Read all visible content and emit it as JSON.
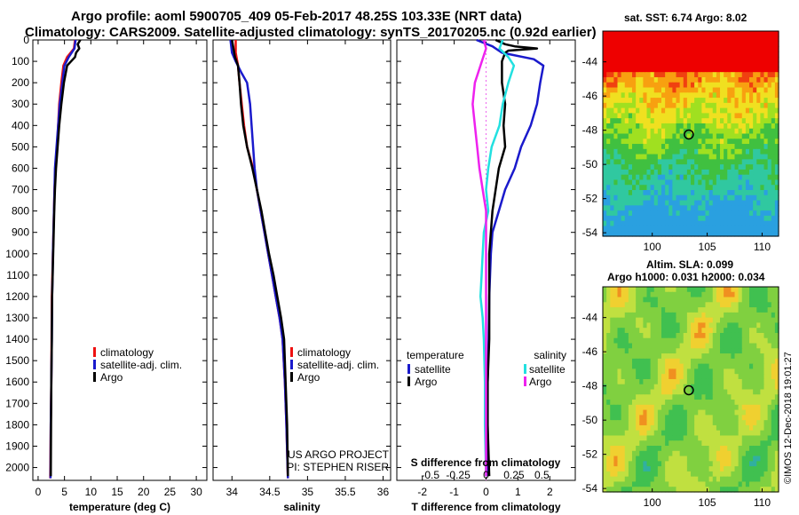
{
  "header": {
    "line1": "Argo profile: aoml 5900705_409 05-Feb-2017 48.25S 103.33E (NRT data)",
    "line2": "Climatology: CARS2009. Satellite-adjusted climatology: synTS_20170205.nc (0.92d earlier)"
  },
  "colors": {
    "climatology": "#ee1111",
    "satellite": "#1a1acc",
    "argo": "#000000",
    "sal_satellite": "#22e0e0",
    "sal_argo": "#ee22ee"
  },
  "depth_axis": {
    "ticks": [
      0,
      100,
      200,
      300,
      400,
      500,
      600,
      700,
      800,
      900,
      1000,
      1100,
      1200,
      1300,
      1400,
      1500,
      1600,
      1700,
      1800,
      1900,
      2000
    ]
  },
  "chart_data": [
    {
      "type": "line",
      "id": "temperature",
      "xlabel": "temperature (deg C)",
      "ylabel": "depth",
      "xlim": [
        -1,
        32
      ],
      "ylim": [
        2060,
        0
      ],
      "xticks": [
        0,
        5,
        10,
        15,
        20,
        25,
        30
      ],
      "xtick_labels": [
        "0",
        "5",
        "10",
        "15",
        "20",
        "25",
        "30"
      ],
      "legend": [
        "climatology",
        "satellite-adj. clim.",
        "Argo"
      ],
      "series": [
        {
          "name": "climatology",
          "color": "#ee1111",
          "points": [
            [
              7,
              0
            ],
            [
              6.8,
              40
            ],
            [
              5.5,
              80
            ],
            [
              4.8,
              120
            ],
            [
              4.4,
              200
            ],
            [
              4,
              300
            ],
            [
              3.8,
              400
            ],
            [
              3.6,
              500
            ],
            [
              3.3,
              600
            ],
            [
              3.1,
              700
            ],
            [
              3,
              800
            ],
            [
              2.9,
              900
            ],
            [
              2.8,
              1000
            ],
            [
              2.7,
              1100
            ],
            [
              2.6,
              1200
            ],
            [
              2.55,
              1400
            ],
            [
              2.5,
              1600
            ],
            [
              2.4,
              1800
            ],
            [
              2.3,
              2050
            ]
          ]
        },
        {
          "name": "satellite-adj. clim.",
          "color": "#1a1acc",
          "points": [
            [
              7.1,
              0
            ],
            [
              6.9,
              40
            ],
            [
              5.8,
              80
            ],
            [
              5,
              120
            ],
            [
              4.6,
              200
            ],
            [
              4.1,
              300
            ],
            [
              3.8,
              400
            ],
            [
              3.5,
              500
            ],
            [
              3.2,
              600
            ],
            [
              3.1,
              700
            ],
            [
              3,
              800
            ],
            [
              2.9,
              900
            ],
            [
              2.8,
              1000
            ],
            [
              2.75,
              1100
            ],
            [
              2.65,
              1200
            ],
            [
              2.6,
              1400
            ],
            [
              2.5,
              1600
            ],
            [
              2.4,
              1800
            ],
            [
              2.35,
              2050
            ]
          ]
        },
        {
          "name": "Argo",
          "color": "#000000",
          "points": [
            [
              8,
              0
            ],
            [
              7.5,
              20
            ],
            [
              7.8,
              40
            ],
            [
              7.2,
              60
            ],
            [
              7,
              80
            ],
            [
              5.5,
              120
            ],
            [
              4.9,
              200
            ],
            [
              4.4,
              300
            ],
            [
              4,
              400
            ],
            [
              3.7,
              500
            ],
            [
              3.4,
              600
            ],
            [
              3.2,
              700
            ],
            [
              3.05,
              800
            ],
            [
              2.95,
              900
            ],
            [
              2.85,
              1000
            ],
            [
              2.75,
              1100
            ],
            [
              2.65,
              1200
            ],
            [
              2.6,
              1400
            ],
            [
              2.5,
              1600
            ],
            [
              2.45,
              1800
            ],
            [
              2.4,
              2040
            ]
          ]
        }
      ]
    },
    {
      "type": "line",
      "id": "salinity",
      "xlabel": "salinity",
      "ylabel": "depth",
      "xlim": [
        33.75,
        36.1
      ],
      "ylim": [
        2060,
        0
      ],
      "xticks": [
        34,
        34.5,
        35,
        35.5,
        36
      ],
      "xtick_labels": [
        "34",
        "34.5",
        "35",
        "35.5",
        "36"
      ],
      "legend": [
        "climatology",
        "satellite-adj. clim.",
        "Argo"
      ],
      "annotations": [
        "US ARGO PROJECT",
        "PI: STEPHEN RISER"
      ],
      "series": [
        {
          "name": "climatology",
          "color": "#ee1111",
          "points": [
            [
              34.05,
              0
            ],
            [
              34.05,
              60
            ],
            [
              34.08,
              120
            ],
            [
              34.1,
              200
            ],
            [
              34.13,
              300
            ],
            [
              34.16,
              400
            ],
            [
              34.2,
              500
            ],
            [
              34.28,
              600
            ],
            [
              34.33,
              700
            ],
            [
              34.38,
              800
            ],
            [
              34.43,
              900
            ],
            [
              34.48,
              1000
            ],
            [
              34.53,
              1100
            ],
            [
              34.58,
              1200
            ],
            [
              34.63,
              1300
            ],
            [
              34.67,
              1400
            ],
            [
              34.7,
              1600
            ],
            [
              34.72,
              1800
            ],
            [
              34.74,
              2050
            ]
          ]
        },
        {
          "name": "satellite-adj. clim.",
          "color": "#1a1acc",
          "points": [
            [
              33.98,
              0
            ],
            [
              34,
              60
            ],
            [
              34.05,
              100
            ],
            [
              34.12,
              150
            ],
            [
              34.2,
              200
            ],
            [
              34.24,
              300
            ],
            [
              34.26,
              400
            ],
            [
              34.28,
              500
            ],
            [
              34.3,
              600
            ],
            [
              34.33,
              700
            ],
            [
              34.38,
              800
            ],
            [
              34.43,
              900
            ],
            [
              34.48,
              1000
            ],
            [
              34.53,
              1100
            ],
            [
              34.58,
              1200
            ],
            [
              34.63,
              1300
            ],
            [
              34.67,
              1400
            ],
            [
              34.7,
              1600
            ],
            [
              34.72,
              1800
            ],
            [
              34.74,
              2050
            ]
          ]
        },
        {
          "name": "Argo",
          "color": "#000000",
          "points": [
            [
              34,
              0
            ],
            [
              34.02,
              40
            ],
            [
              34.04,
              80
            ],
            [
              34.08,
              120
            ],
            [
              34.1,
              200
            ],
            [
              34.12,
              300
            ],
            [
              34.15,
              400
            ],
            [
              34.2,
              500
            ],
            [
              34.27,
              600
            ],
            [
              34.33,
              700
            ],
            [
              34.39,
              800
            ],
            [
              34.44,
              900
            ],
            [
              34.49,
              1000
            ],
            [
              34.55,
              1100
            ],
            [
              34.6,
              1200
            ],
            [
              34.65,
              1300
            ],
            [
              34.69,
              1400
            ],
            [
              34.71,
              1600
            ],
            [
              34.73,
              1800
            ],
            [
              34.74,
              2040
            ]
          ]
        }
      ]
    },
    {
      "type": "line",
      "id": "difference",
      "xlabel": "T difference from climatology",
      "xlabel2": "S difference from climatology",
      "ylabel": "depth",
      "xlim": [
        -2.8,
        2.8
      ],
      "ylim": [
        2060,
        0
      ],
      "xticks": [
        -2,
        -1,
        0,
        1,
        2
      ],
      "xtick_labels": [
        "-2",
        "-1",
        "0",
        "1",
        "2"
      ],
      "xticks_s": [
        -0.5,
        -0.25,
        0,
        0.25,
        0.5
      ],
      "xtick_labels_s": [
        "-0.5",
        "-0.25",
        "0",
        "0.25",
        "0.5"
      ],
      "legend_left_title": "temperature",
      "legend_right_title": "salinity",
      "legend_left": [
        "satellite",
        "Argo"
      ],
      "legend_right": [
        "satellite",
        "Argo"
      ],
      "series": [
        {
          "name": "T satellite",
          "color": "#1a1acc",
          "points": [
            [
              -0.3,
              0
            ],
            [
              0.2,
              30
            ],
            [
              0.5,
              60
            ],
            [
              1.5,
              90
            ],
            [
              1.8,
              120
            ],
            [
              1.7,
              200
            ],
            [
              1.6,
              300
            ],
            [
              1.4,
              400
            ],
            [
              1.1,
              500
            ],
            [
              0.9,
              600
            ],
            [
              0.6,
              700
            ],
            [
              0.4,
              800
            ],
            [
              0.2,
              900
            ],
            [
              0.15,
              1000
            ],
            [
              0.1,
              1200
            ],
            [
              0.08,
              1400
            ],
            [
              0.05,
              1600
            ],
            [
              0.05,
              1800
            ],
            [
              0.05,
              2040
            ]
          ]
        },
        {
          "name": "T Argo",
          "color": "#000000",
          "points": [
            [
              0.3,
              0
            ],
            [
              0.6,
              20
            ],
            [
              0.9,
              30
            ],
            [
              1.6,
              40
            ],
            [
              0.7,
              50
            ],
            [
              0.6,
              60
            ],
            [
              0.5,
              100
            ],
            [
              0.5,
              200
            ],
            [
              0.6,
              300
            ],
            [
              0.55,
              400
            ],
            [
              0.6,
              500
            ],
            [
              0.4,
              600
            ],
            [
              0.3,
              700
            ],
            [
              0.2,
              800
            ],
            [
              0.15,
              900
            ],
            [
              0.1,
              1000
            ],
            [
              0.1,
              1200
            ],
            [
              0.1,
              1400
            ],
            [
              0.05,
              1600
            ],
            [
              0.05,
              1800
            ],
            [
              0.1,
              2040
            ]
          ]
        },
        {
          "name": "S satellite",
          "color": "#22e0e0",
          "points": [
            [
              0.15,
              0
            ],
            [
              0.12,
              40
            ],
            [
              0.2,
              80
            ],
            [
              0.25,
              120
            ],
            [
              0.2,
              200
            ],
            [
              0.15,
              300
            ],
            [
              0.12,
              400
            ],
            [
              0.05,
              500
            ],
            [
              0.02,
              600
            ],
            [
              0.0,
              700
            ],
            [
              0.02,
              800
            ],
            [
              -0.02,
              900
            ],
            [
              -0.03,
              1000
            ],
            [
              -0.04,
              1100
            ],
            [
              -0.05,
              1200
            ],
            [
              -0.03,
              1300
            ],
            [
              -0.02,
              1400
            ],
            [
              -0.01,
              1600
            ],
            [
              -0.01,
              1800
            ],
            [
              0.0,
              2040
            ]
          ]
        },
        {
          "name": "S Argo",
          "color": "#ee22ee",
          "points": [
            [
              -0.02,
              0
            ],
            [
              0.0,
              40
            ],
            [
              -0.05,
              120
            ],
            [
              -0.1,
              200
            ],
            [
              -0.12,
              300
            ],
            [
              -0.1,
              400
            ],
            [
              -0.08,
              500
            ],
            [
              -0.06,
              600
            ],
            [
              -0.03,
              700
            ],
            [
              0.0,
              800
            ],
            [
              0.0,
              900
            ],
            [
              0.0,
              1000
            ],
            [
              0.0,
              1200
            ],
            [
              0.0,
              1400
            ],
            [
              0.0,
              1600
            ],
            [
              0.0,
              1800
            ],
            [
              0.0,
              2040
            ]
          ]
        }
      ]
    },
    {
      "type": "heatmap",
      "id": "sst_map",
      "title": "sat. SST: 6.74 Argo: 8.02",
      "xticks": [
        100,
        105,
        110
      ],
      "yticks": [
        -44,
        -46,
        -48,
        -50,
        -52,
        -54
      ],
      "xtick_labels": [
        "100",
        "105",
        "110"
      ],
      "ytick_labels": [
        "-44",
        "-46",
        "-48",
        "-50",
        "-52",
        "-54"
      ],
      "xlim": [
        95.5,
        111.5
      ],
      "ylim": [
        -54.2,
        -42.2
      ],
      "marker": [
        103.33,
        -48.25
      ]
    },
    {
      "type": "heatmap",
      "id": "sla_map",
      "title_line1": "Altim. SLA: 0.099",
      "title_line2": "Argo h1000: 0.031 h2000: 0.034",
      "xticks": [
        100,
        105,
        110
      ],
      "yticks": [
        -44,
        -46,
        -48,
        -50,
        -52,
        -54
      ],
      "xtick_labels": [
        "100",
        "105",
        "110"
      ],
      "ytick_labels": [
        "-44",
        "-46",
        "-48",
        "-50",
        "-52",
        "-54"
      ],
      "xlim": [
        95.5,
        111.5
      ],
      "ylim": [
        -54.2,
        -42.2
      ],
      "marker": [
        103.33,
        -48.25
      ]
    }
  ],
  "footer": {
    "stamp": "©IMOS 12-Dec-2018 19:01:27"
  }
}
